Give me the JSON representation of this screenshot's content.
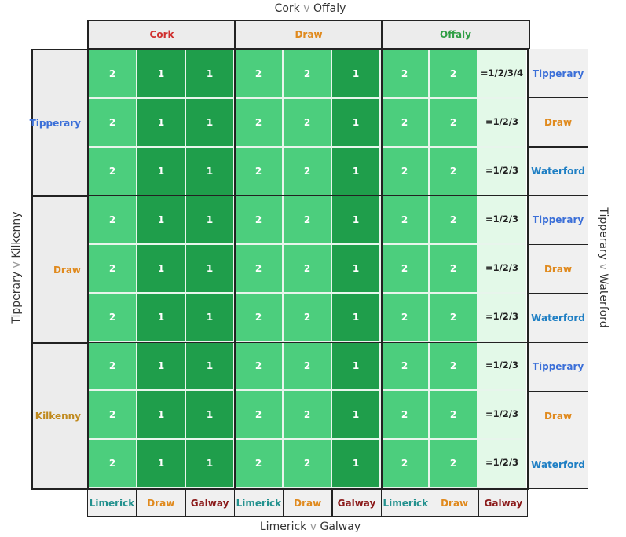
{
  "top_match": {
    "a": "Cork",
    "v": "v",
    "b": "Offaly"
  },
  "bottom_match": {
    "a": "Limerick",
    "v": "v",
    "b": "Galway"
  },
  "left_match": {
    "a": "Tipperary",
    "v": "v",
    "b": "Kilkenny"
  },
  "right_match": {
    "a": "Tipperary",
    "v": "v",
    "b": "Waterford"
  },
  "column_groups": [
    {
      "label": "Cork",
      "color": "#d0302f"
    },
    {
      "label": "Draw",
      "color": "#e08a1e"
    },
    {
      "label": "Offaly",
      "color": "#2f9e44"
    }
  ],
  "row_groups": [
    {
      "label": "Tipperary",
      "color": "#3b6fd8"
    },
    {
      "label": "Draw",
      "color": "#e08a1e"
    },
    {
      "label": "Kilkenny",
      "color": "#c08a1e"
    }
  ],
  "bottom_labels": [
    {
      "label": "Limerick",
      "color": "#23918e"
    },
    {
      "label": "Draw",
      "color": "#e08a1e"
    },
    {
      "label": "Galway",
      "color": "#8b1a1a"
    },
    {
      "label": "Limerick",
      "color": "#23918e"
    },
    {
      "label": "Draw",
      "color": "#e08a1e"
    },
    {
      "label": "Galway",
      "color": "#8b1a1a"
    },
    {
      "label": "Limerick",
      "color": "#23918e"
    },
    {
      "label": "Draw",
      "color": "#e08a1e"
    },
    {
      "label": "Galway",
      "color": "#8b1a1a"
    }
  ],
  "right_labels": [
    {
      "label": "Tipperary",
      "color": "#3b6fd8"
    },
    {
      "label": "Draw",
      "color": "#e08a1e"
    },
    {
      "label": "Waterford",
      "color": "#1f7fc4"
    },
    {
      "label": "Tipperary",
      "color": "#3b6fd8"
    },
    {
      "label": "Draw",
      "color": "#e08a1e"
    },
    {
      "label": "Waterford",
      "color": "#1f7fc4"
    },
    {
      "label": "Tipperary",
      "color": "#3b6fd8"
    },
    {
      "label": "Draw",
      "color": "#e08a1e"
    },
    {
      "label": "Waterford",
      "color": "#1f7fc4"
    }
  ],
  "cell_values": [
    [
      "2",
      "1",
      "1",
      "2",
      "2",
      "1",
      "2",
      "2",
      "=1/2/3/4"
    ],
    [
      "2",
      "1",
      "1",
      "2",
      "2",
      "1",
      "2",
      "2",
      "=1/2/3"
    ],
    [
      "2",
      "1",
      "1",
      "2",
      "2",
      "1",
      "2",
      "2",
      "=1/2/3"
    ],
    [
      "2",
      "1",
      "1",
      "2",
      "2",
      "1",
      "2",
      "2",
      "=1/2/3"
    ],
    [
      "2",
      "1",
      "1",
      "2",
      "2",
      "1",
      "2",
      "2",
      "=1/2/3"
    ],
    [
      "2",
      "1",
      "1",
      "2",
      "2",
      "1",
      "2",
      "2",
      "=1/2/3"
    ],
    [
      "2",
      "1",
      "1",
      "2",
      "2",
      "1",
      "2",
      "2",
      "=1/2/3"
    ],
    [
      "2",
      "1",
      "1",
      "2",
      "2",
      "1",
      "2",
      "2",
      "=1/2/3"
    ],
    [
      "2",
      "1",
      "1",
      "2",
      "2",
      "1",
      "2",
      "2",
      "=1/2/3"
    ]
  ],
  "colors": {
    "rank1": "#1f9e4b",
    "rank2": "#4cce7d",
    "shared": "#e3f9e8"
  }
}
